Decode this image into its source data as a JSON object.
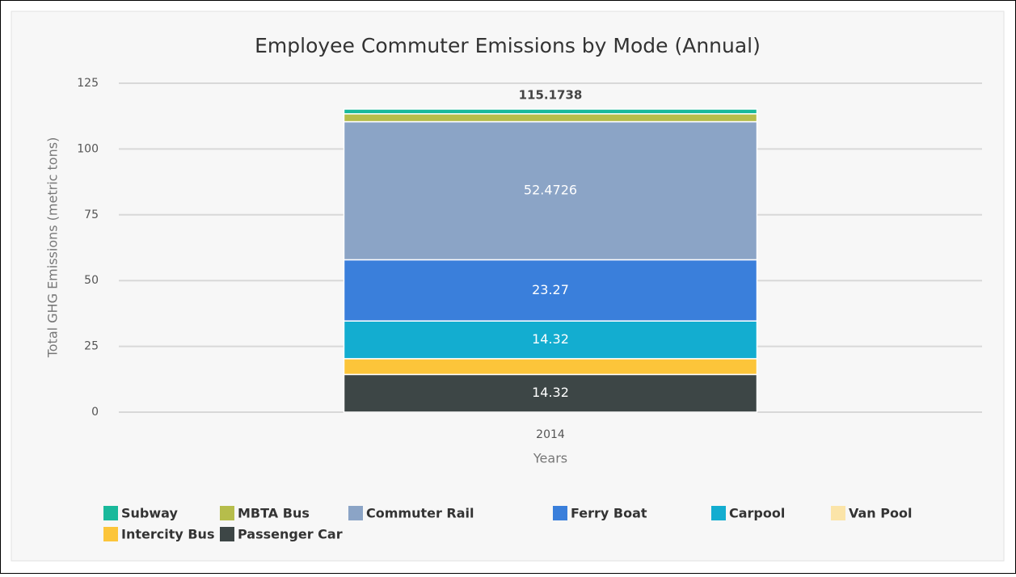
{
  "chart_data": {
    "type": "stacked_bar",
    "title": "Employee Commuter Emissions by Mode (Annual)",
    "ylabel": "Total GHG Emissions (metric tons)",
    "xlabel": "Years",
    "categories": [
      "2014"
    ],
    "series": [
      {
        "name": "Subway",
        "color": "#19b99b",
        "values": [
          1.8
        ],
        "data_labels": false
      },
      {
        "name": "MBTA Bus",
        "color": "#b6bd4b",
        "values": [
          3.0
        ],
        "data_labels": false
      },
      {
        "name": "Commuter Rail",
        "color": "#8ba4c6",
        "values": [
          52.4726
        ],
        "data_labels": true
      },
      {
        "name": "Ferry Boat",
        "color": "#3a7fdb",
        "values": [
          23.27
        ],
        "data_labels": true
      },
      {
        "name": "Carpool",
        "color": "#13add0",
        "values": [
          14.32
        ],
        "data_labels": true
      },
      {
        "name": "Van Pool",
        "color": "#fbe4a8",
        "values": [
          0
        ],
        "data_labels": false
      },
      {
        "name": "Intercity Bus",
        "color": "#fcc53a",
        "values": [
          6.0
        ],
        "data_labels": false
      },
      {
        "name": "Passenger Car",
        "color": "#3d4646",
        "values": [
          14.32
        ],
        "data_labels": true
      }
    ],
    "totals": [
      115.1738
    ],
    "ylim": [
      0,
      125
    ],
    "yticks": [
      0,
      25,
      50,
      75,
      100,
      125
    ],
    "grid": true
  }
}
